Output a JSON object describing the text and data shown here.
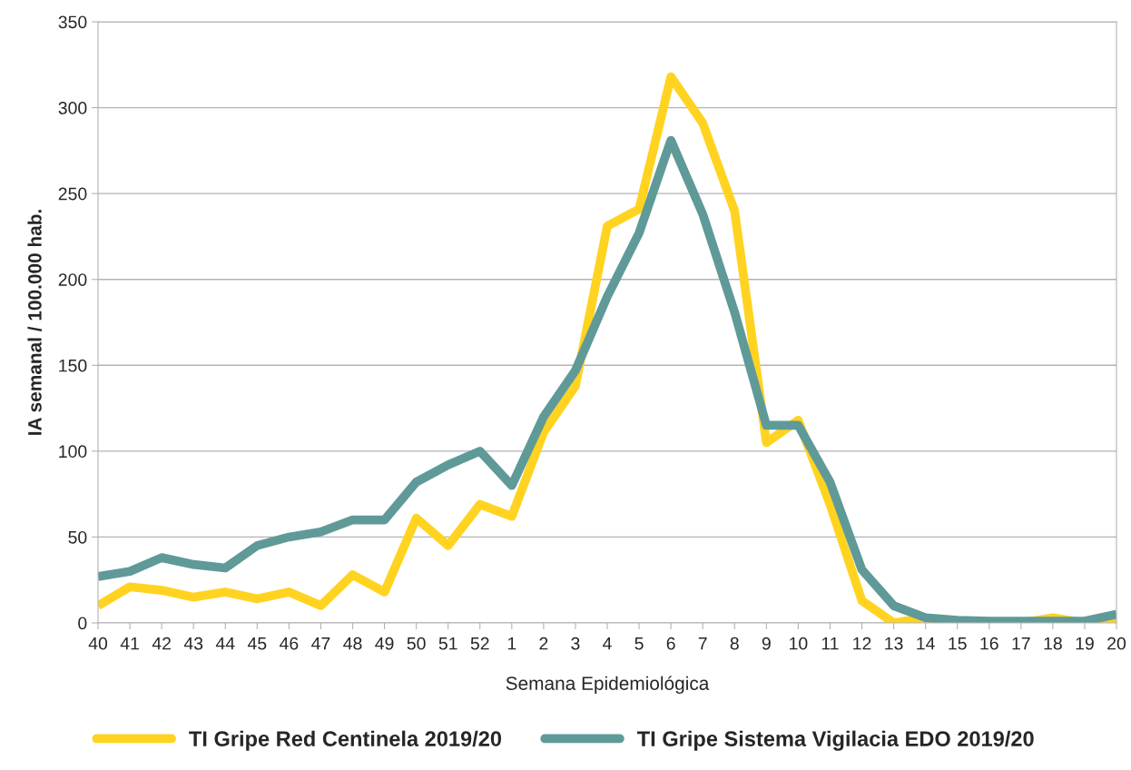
{
  "chart_data": {
    "type": "line",
    "xlabel": "Semana Epidemiológica",
    "ylabel": "IA semanal / 100.000 hab.",
    "categories": [
      "40",
      "41",
      "42",
      "43",
      "44",
      "45",
      "46",
      "47",
      "48",
      "49",
      "50",
      "51",
      "52",
      "1",
      "2",
      "3",
      "4",
      "5",
      "6",
      "7",
      "8",
      "9",
      "10",
      "11",
      "12",
      "13",
      "14",
      "15",
      "16",
      "17",
      "18",
      "19",
      "20"
    ],
    "series": [
      {
        "name": "TI Gripe Red Centinela 2019/20",
        "color": "#ffd320",
        "values": [
          10,
          21,
          19,
          15,
          18,
          14,
          18,
          10,
          28,
          18,
          61,
          45,
          69,
          62,
          111,
          138,
          231,
          241,
          318,
          291,
          240,
          105,
          118,
          69,
          13,
          0,
          3,
          0,
          0,
          0,
          3,
          0,
          0
        ]
      },
      {
        "name": "TI Gripe Sistema Vigilacia EDO 2019/20",
        "color": "#5f9a98",
        "values": [
          27,
          30,
          38,
          34,
          32,
          45,
          50,
          53,
          60,
          60,
          82,
          92,
          100,
          80,
          120,
          147,
          190,
          227,
          281,
          238,
          181,
          115,
          115,
          82,
          31,
          10,
          3,
          1.5,
          1,
          1,
          1,
          1,
          5
        ]
      }
    ],
    "ylim": [
      0,
      350
    ],
    "yticks": [
      0,
      50,
      100,
      150,
      200,
      250,
      300,
      350
    ],
    "grid": "y",
    "legend": "bottom",
    "marker": "none",
    "line_style": "solid"
  }
}
